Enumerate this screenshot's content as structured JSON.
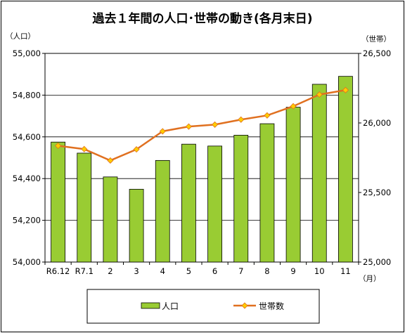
{
  "chart_data": {
    "type": "bar+line",
    "title": "過去１年間の人口･世帯の動き(各月末日)",
    "categories": [
      "R6.12",
      "R7.1",
      "2",
      "3",
      "4",
      "5",
      "6",
      "7",
      "8",
      "9",
      "10",
      "11"
    ],
    "series": [
      {
        "name": "人口",
        "type": "bar",
        "axis": "left",
        "color": "#99cc33",
        "values": [
          54575,
          54522,
          54408,
          54349,
          54487,
          54565,
          54556,
          54608,
          54663,
          54742,
          54852,
          54890
        ]
      },
      {
        "name": "世帯数",
        "type": "line",
        "axis": "right",
        "color": "#e07020",
        "marker_color": "#ffcc00",
        "values": [
          25836,
          25812,
          25730,
          25810,
          25940,
          25974,
          25988,
          26024,
          26054,
          26120,
          26204,
          26236
        ]
      }
    ],
    "left_axis": {
      "unit_label": "（人口）",
      "ylim": [
        54000,
        55000
      ],
      "ticks": [
        "54,000",
        "54,200",
        "54,400",
        "54,600",
        "54,800",
        "55,000"
      ]
    },
    "right_axis": {
      "unit_label": "（世帯）",
      "ylim": [
        25000,
        26500
      ],
      "ticks": [
        "25,000",
        "25,500",
        "26,000",
        "26,500"
      ]
    },
    "x_unit_label": "（月）",
    "grid": true,
    "legend_position": "bottom"
  }
}
